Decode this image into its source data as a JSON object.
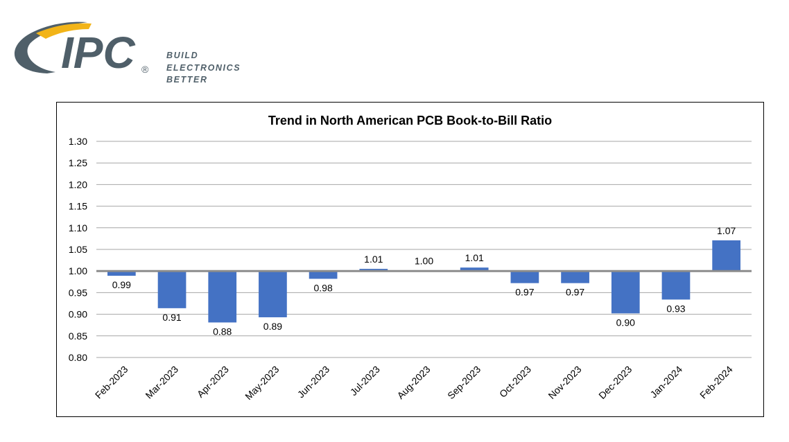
{
  "brand": {
    "logo_text": "IPC",
    "registered": "®",
    "tagline_lines": [
      "BUILD",
      "ELECTRONICS",
      "BETTER"
    ],
    "colors": {
      "gray": "#4f5f69",
      "gold": "#f2b418"
    }
  },
  "chart_data": {
    "type": "bar",
    "title": "Trend in North American PCB Book-to-Bill Ratio",
    "xlabel": "",
    "ylabel": "",
    "baseline": 1.0,
    "ylim": [
      0.8,
      1.3
    ],
    "yticks": [
      "1.30",
      "1.25",
      "1.20",
      "1.15",
      "1.10",
      "1.05",
      "1.00",
      "0.95",
      "0.90",
      "0.85",
      "0.80"
    ],
    "categories": [
      "Feb-2023",
      "Mar-2023",
      "Apr-2023",
      "May-2023",
      "Jun-2023",
      "Jul-2023",
      "Aug-2023",
      "Sep-2023",
      "Oct-2023",
      "Nov-2023",
      "Dec-2023",
      "Jan-2024",
      "Feb-2024"
    ],
    "values": [
      0.989,
      0.914,
      0.881,
      0.893,
      0.982,
      1.005,
      1.001,
      1.008,
      0.972,
      0.972,
      0.902,
      0.934,
      1.071
    ],
    "labels": [
      "0.99",
      "0.91",
      "0.88",
      "0.89",
      "0.98",
      "1.01",
      "1.00",
      "1.01",
      "0.97",
      "0.97",
      "0.90",
      "0.93",
      "1.07"
    ],
    "bar_color": "#4472c4",
    "grid": true,
    "legend": "none"
  }
}
